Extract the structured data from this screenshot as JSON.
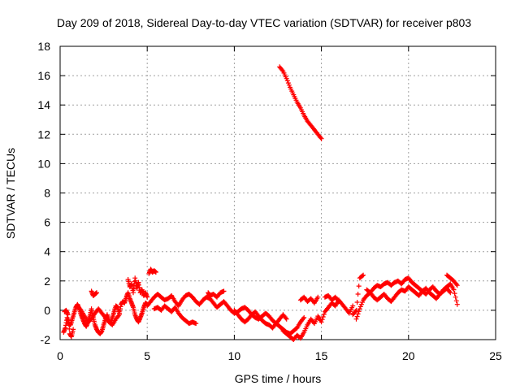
{
  "chart_data": {
    "type": "scatter",
    "title": "Day 209 of 2018, Sidereal Day-to-day VTEC variation (SDTVAR) for receiver p803",
    "xlabel": "GPS time / hours",
    "ylabel": "SDTVAR / TECUs",
    "xlim": [
      0,
      25
    ],
    "ylim": [
      -2,
      18
    ],
    "xticks": [
      0,
      5,
      10,
      15,
      20,
      25
    ],
    "yticks": [
      -2,
      0,
      2,
      4,
      6,
      8,
      10,
      12,
      14,
      16,
      18
    ],
    "grid": true,
    "marker": "+",
    "colors": {
      "series": "#ff0000",
      "grid": "#a0a0a0",
      "axis": "#000000"
    },
    "series": [
      {
        "name": "SDTVAR",
        "segments": [
          {
            "x": [
              0.2,
              0.3,
              0.4,
              0.5,
              0.6,
              0.7,
              0.8,
              0.9,
              1.0,
              1.1,
              1.2,
              1.3,
              1.4,
              1.5,
              1.6,
              1.7,
              1.8,
              1.9,
              2.0,
              2.1,
              2.2,
              2.3,
              2.4,
              2.5,
              2.6,
              2.7,
              2.8,
              2.9,
              3.0,
              3.1,
              3.2,
              3.3,
              3.4,
              3.5,
              3.6,
              3.7,
              3.8,
              3.9,
              4.0,
              4.1,
              4.2,
              4.3,
              4.4,
              4.5,
              4.6,
              4.7,
              4.8,
              4.9,
              5.0
            ],
            "y": [
              -1.5,
              -1.2,
              -0.5,
              -0.9,
              -1.0,
              -0.6,
              -0.2,
              0.2,
              0.4,
              0.1,
              -0.3,
              -0.6,
              -0.9,
              -1.1,
              -0.8,
              -0.4,
              0.1,
              -0.5,
              -1.0,
              -1.3,
              -1.5,
              -1.6,
              -1.4,
              -1.0,
              -0.6,
              -0.3,
              -0.7,
              -0.9,
              -0.5,
              -0.1,
              0.3,
              0.2,
              -0.2,
              0.4,
              0.6,
              0.5,
              0.9,
              1.2,
              0.8,
              0.5,
              0.2,
              -0.3,
              -0.6,
              -0.8,
              -0.5,
              -0.2,
              0.2,
              0.5,
              0.4
            ]
          },
          {
            "x": [
              0.25,
              0.35,
              0.45,
              0.55,
              0.65,
              0.75
            ],
            "y": [
              -0.1,
              0.0,
              -0.3,
              -1.6,
              -1.8,
              -1.3
            ]
          },
          {
            "x": [
              1.0,
              1.2,
              1.4,
              1.6,
              1.8,
              2.0,
              2.2,
              2.4,
              2.6,
              2.8,
              3.0,
              3.2,
              3.4
            ],
            "y": [
              0.3,
              0.0,
              -0.4,
              -0.8,
              -0.6,
              -0.2,
              0.1,
              -0.2,
              -0.5,
              -0.8,
              -1.0,
              -0.6,
              -0.3
            ]
          },
          {
            "x": [
              1.8,
              1.9,
              2.0,
              2.1
            ],
            "y": [
              1.3,
              1.0,
              1.1,
              1.2
            ]
          },
          {
            "x": [
              3.9,
              4.0,
              4.1,
              4.2,
              4.3,
              4.4,
              4.5,
              4.6,
              4.7,
              4.8,
              4.9,
              5.0
            ],
            "y": [
              2.1,
              1.6,
              1.8,
              1.2,
              2.2,
              1.5,
              1.9,
              1.2,
              1.4,
              1.0,
              1.2,
              0.9
            ]
          },
          {
            "x": [
              5.1,
              5.2,
              5.3,
              5.4,
              5.5
            ],
            "y": [
              2.5,
              2.8,
              2.6,
              2.7,
              2.6
            ]
          },
          {
            "x": [
              5.0,
              5.2,
              5.4,
              5.6,
              5.8,
              6.0,
              6.2,
              6.4,
              6.6,
              6.8,
              7.0,
              7.2,
              7.4,
              7.6,
              7.8,
              8.0,
              8.2,
              8.4,
              8.6,
              8.8,
              9.0,
              9.2,
              9.4,
              9.6,
              9.8,
              10.0,
              10.2,
              10.4,
              10.6,
              10.8,
              11.0,
              11.2,
              11.4,
              11.6,
              11.8,
              12.0,
              12.2,
              12.4,
              12.6,
              12.8,
              13.0,
              13.2,
              13.4,
              13.6,
              13.8,
              14.0
            ],
            "y": [
              0.3,
              0.6,
              0.9,
              1.1,
              0.9,
              0.7,
              0.8,
              1.0,
              0.6,
              0.3,
              0.7,
              1.0,
              1.1,
              0.9,
              0.6,
              0.4,
              0.7,
              0.9,
              0.8,
              0.5,
              0.2,
              0.4,
              0.6,
              0.3,
              0.0,
              -0.2,
              -0.1,
              0.1,
              0.2,
              0.0,
              -0.3,
              -0.5,
              -0.6,
              -0.4,
              -0.2,
              -0.4,
              -0.7,
              -0.9,
              -1.1,
              -1.3,
              -1.5,
              -1.6,
              -1.4,
              -1.2,
              -0.8,
              -0.5
            ]
          },
          {
            "x": [
              5.4,
              5.6,
              5.8,
              6.0,
              6.2,
              6.4,
              6.6,
              6.8,
              7.0,
              7.2,
              7.4,
              7.6,
              7.8
            ],
            "y": [
              0.1,
              0.2,
              0.0,
              0.3,
              0.1,
              -0.1,
              0.2,
              -0.2,
              -0.5,
              -0.7,
              -0.9,
              -0.8,
              -0.9
            ]
          },
          {
            "x": [
              8.5,
              8.6,
              8.8,
              9.0,
              9.2,
              9.4
            ],
            "y": [
              1.2,
              1.0,
              1.1,
              0.9,
              1.2,
              1.3
            ]
          },
          {
            "x": [
              10.0,
              10.2,
              10.4,
              10.6,
              10.8,
              11.0,
              11.2,
              11.4,
              11.6,
              11.8,
              12.0,
              12.2,
              12.4,
              12.6,
              12.8,
              13.0
            ],
            "y": [
              0.0,
              -0.3,
              -0.6,
              -0.8,
              -0.6,
              -0.3,
              -0.1,
              -0.4,
              -0.7,
              -0.9,
              -1.0,
              -1.2,
              -0.9,
              -0.6,
              -0.3,
              -0.6
            ]
          },
          {
            "x": [
              12.8,
              13.0,
              13.2,
              13.4,
              13.6,
              13.8,
              14.0,
              14.2,
              14.4,
              14.6,
              14.8,
              15.0,
              15.2,
              15.4,
              15.6,
              15.8,
              16.0,
              16.2,
              16.4,
              16.6,
              16.8
            ],
            "y": [
              -1.4,
              -1.6,
              -1.8,
              -2.0,
              -1.7,
              -1.9,
              -1.5,
              -1.0,
              -0.6,
              -0.9,
              -0.4,
              -0.8,
              -0.1,
              0.2,
              0.5,
              0.3,
              0.7,
              0.4,
              0.1,
              -0.2,
              0.3
            ]
          },
          {
            "x": [
              13.8,
              14.0,
              14.2,
              14.4,
              14.6,
              14.8
            ],
            "y": [
              0.7,
              0.9,
              0.6,
              0.8,
              0.5,
              0.9
            ]
          },
          {
            "x": [
              15.2,
              15.4,
              15.6,
              15.8,
              16.0
            ],
            "y": [
              0.9,
              1.0,
              0.7,
              0.9,
              0.6
            ]
          },
          {
            "x": [
              17.0,
              17.2,
              17.4,
              17.6,
              17.8,
              18.0,
              18.2,
              18.4,
              18.6,
              18.8,
              19.0,
              19.2,
              19.4,
              19.6,
              19.8,
              20.0,
              20.2,
              20.4,
              20.6,
              20.8,
              21.0,
              21.2,
              21.4,
              21.6,
              21.8,
              22.0,
              22.2,
              22.4,
              22.6,
              22.8
            ],
            "y": [
              -0.6,
              0.1,
              0.7,
              1.0,
              1.2,
              1.5,
              1.7,
              1.6,
              1.8,
              1.9,
              1.7,
              1.9,
              2.0,
              1.8,
              2.1,
              2.2,
              1.9,
              1.7,
              1.5,
              1.3,
              1.1,
              1.4,
              1.6,
              1.3,
              1.1,
              1.4,
              1.6,
              1.8,
              1.4,
              0.4
            ]
          },
          {
            "x": [
              16.8,
              17.0,
              17.2,
              17.4
            ],
            "y": [
              -0.3,
              0.0,
              2.2,
              2.4
            ]
          },
          {
            "x": [
              17.6,
              17.8,
              18.0,
              18.2,
              18.4,
              18.6,
              18.8,
              19.0,
              19.2,
              19.4,
              19.6,
              19.8,
              20.0,
              20.2,
              20.4,
              20.6,
              20.8,
              21.0,
              21.2,
              21.4,
              21.6,
              21.8,
              22.0,
              22.2,
              22.4
            ],
            "y": [
              1.4,
              1.2,
              0.9,
              0.7,
              0.9,
              1.1,
              0.8,
              0.6,
              0.9,
              1.2,
              1.4,
              1.3,
              1.6,
              1.4,
              1.2,
              1.0,
              1.3,
              1.5,
              1.2,
              1.0,
              0.8,
              1.1,
              1.3,
              1.5,
              1.2
            ]
          },
          {
            "x": [
              22.2,
              22.4,
              22.6,
              22.8
            ],
            "y": [
              2.4,
              2.2,
              2.0,
              1.7
            ]
          },
          {
            "x": [
              12.6,
              12.8,
              13.0,
              13.2,
              13.4,
              13.6,
              13.8,
              14.0,
              14.2,
              14.4,
              14.6,
              14.8,
              15.0
            ],
            "y": [
              16.6,
              16.3,
              15.8,
              15.2,
              14.7,
              14.2,
              13.8,
              13.3,
              12.9,
              12.6,
              12.3,
              12.0,
              11.7
            ]
          }
        ]
      }
    ]
  }
}
